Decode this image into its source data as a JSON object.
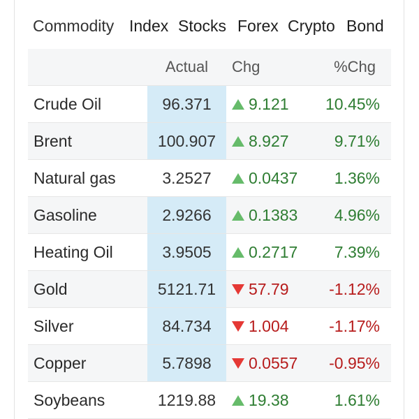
{
  "tabs": [
    {
      "label": "Commodity",
      "active": true
    },
    {
      "label": "Index",
      "active": false
    },
    {
      "label": "Stocks",
      "active": false
    },
    {
      "label": "Forex",
      "active": false
    },
    {
      "label": "Crypto",
      "active": false
    },
    {
      "label": "Bond",
      "active": false
    }
  ],
  "table": {
    "headers": {
      "name": "",
      "actual": "Actual",
      "chg": "Chg",
      "pct": "%Chg"
    },
    "rows": [
      {
        "name": "Crude Oil",
        "actual": "96.371",
        "chg": "9.121",
        "pct": "10.45%",
        "direction": "up"
      },
      {
        "name": "Brent",
        "actual": "100.907",
        "chg": "8.927",
        "pct": "9.71%",
        "direction": "up"
      },
      {
        "name": "Natural gas",
        "actual": "3.2527",
        "chg": "0.0437",
        "pct": "1.36%",
        "direction": "up"
      },
      {
        "name": "Gasoline",
        "actual": "2.9266",
        "chg": "0.1383",
        "pct": "4.96%",
        "direction": "up"
      },
      {
        "name": "Heating Oil",
        "actual": "3.9505",
        "chg": "0.2717",
        "pct": "7.39%",
        "direction": "up"
      },
      {
        "name": "Gold",
        "actual": "5121.71",
        "chg": "57.79",
        "pct": "-1.12%",
        "direction": "down"
      },
      {
        "name": "Silver",
        "actual": "84.734",
        "chg": "1.004",
        "pct": "-1.17%",
        "direction": "down"
      },
      {
        "name": "Copper",
        "actual": "5.7898",
        "chg": "0.0557",
        "pct": "-0.95%",
        "direction": "down"
      },
      {
        "name": "Soybeans",
        "actual": "1219.88",
        "chg": "19.38",
        "pct": "1.61%",
        "direction": "up"
      }
    ]
  },
  "colors": {
    "up": "#2e7d32",
    "down": "#b71c1c",
    "up_arrow": "#66bb6a",
    "down_arrow": "#e53935",
    "highlight": "#d5ebf7"
  },
  "icons": {
    "up": "triangle-up-icon",
    "down": "triangle-down-icon"
  }
}
